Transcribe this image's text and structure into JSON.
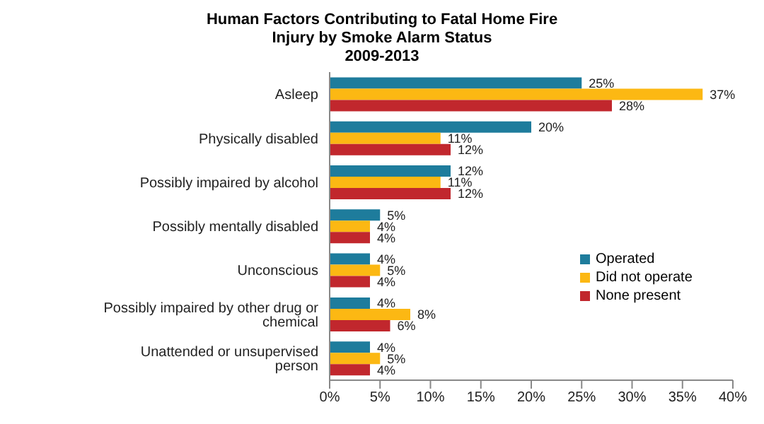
{
  "chart_data": {
    "type": "bar",
    "orientation": "horizontal",
    "title": "Human Factors Contributing to Fatal Home Fire Injury by Smoke Alarm Status",
    "subtitle": "2009-2013",
    "categories": [
      "Asleep",
      "Physically disabled",
      "Possibly impaired by alcohol",
      "Possibly mentally disabled",
      "Unconscious",
      "Possibly impaired by other drug or chemical",
      "Unattended or unsupervised person"
    ],
    "series": [
      {
        "name": "Operated",
        "color": "#1e7c9c",
        "values": [
          25,
          20,
          12,
          5,
          4,
          4,
          4
        ],
        "value_labels": [
          "25%",
          "20%",
          "12%",
          "5%",
          "4%",
          "4%",
          "4%"
        ]
      },
      {
        "name": "Did not operate",
        "color": "#fcb813",
        "values": [
          37,
          11,
          11,
          4,
          5,
          8,
          5
        ],
        "value_labels": [
          "37%",
          "11%",
          "11%",
          "4%",
          "5%",
          "8%",
          "5%"
        ]
      },
      {
        "name": "None present",
        "color": "#c1272d",
        "values": [
          28,
          12,
          12,
          4,
          4,
          6,
          4
        ],
        "value_labels": [
          "28%",
          "12%",
          "12%",
          "4%",
          "4%",
          "6%",
          "4%"
        ]
      }
    ],
    "xlim": [
      0,
      40
    ],
    "xticks": [
      {
        "value": 0,
        "label": "0%"
      },
      {
        "value": 5,
        "label": "5%"
      },
      {
        "value": 10,
        "label": "10%"
      },
      {
        "value": 15,
        "label": "15%"
      },
      {
        "value": 20,
        "label": "20%"
      },
      {
        "value": 25,
        "label": "25%"
      },
      {
        "value": 30,
        "label": "30%"
      },
      {
        "value": 35,
        "label": "35%"
      },
      {
        "value": 40,
        "label": "40%"
      }
    ],
    "legend": "right",
    "grid": false
  }
}
